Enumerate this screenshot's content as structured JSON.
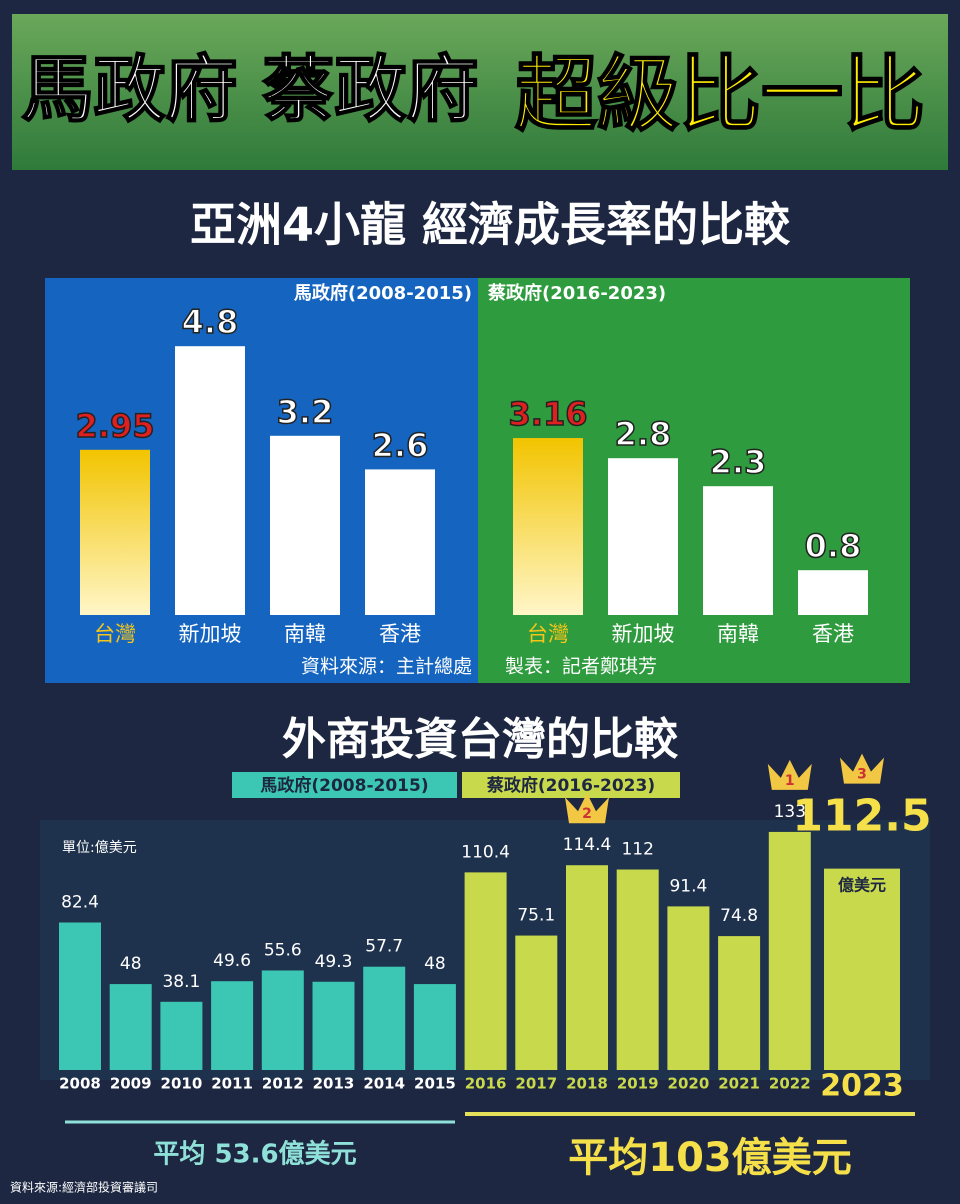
{
  "header": {
    "title_white": "馬政府 蔡政府",
    "title_yellow": "超級比一比"
  },
  "chart_data": [
    {
      "type": "panel-bar",
      "title": "亞洲4小龍 經濟成長率的比較",
      "categories": [
        "台灣",
        "新加坡",
        "南韓",
        "香港"
      ],
      "series": [
        {
          "name": "馬政府(2008-2015)",
          "color": "#1565c0",
          "colors": [
            "#f5c518",
            "#ffffff",
            "#ffffff",
            "#ffffff"
          ],
          "values": [
            2.95,
            4.8,
            3.2,
            2.6
          ]
        },
        {
          "name": "蔡政府(2016-2023)",
          "color": "#2e9b3e",
          "colors": [
            "#f5c518",
            "#ffffff",
            "#ffffff",
            "#ffffff"
          ],
          "values": [
            3.16,
            2.8,
            2.3,
            0.8
          ]
        }
      ],
      "notes": [
        "資料來源：主計總處",
        "製表：記者鄭琪芳"
      ]
    },
    {
      "type": "bar",
      "title": "外商投資台灣的比較",
      "unit": "單位:億美元",
      "categories": [
        "2008",
        "2009",
        "2010",
        "2011",
        "2012",
        "2013",
        "2014",
        "2015",
        "2016",
        "2017",
        "2018",
        "2019",
        "2020",
        "2021",
        "2022",
        "2023"
      ],
      "series": [
        {
          "name": "馬政府(2008-2015)",
          "color": "#3cc7b4",
          "values": [
            82.4,
            48,
            38.1,
            49.6,
            55.6,
            49.3,
            57.7,
            48,
            null,
            null,
            null,
            null,
            null,
            null,
            null,
            null
          ]
        },
        {
          "name": "蔡政府(2016-2023)",
          "color": "#c9d94c",
          "values": [
            null,
            null,
            null,
            null,
            null,
            null,
            null,
            null,
            110.4,
            75.1,
            114.4,
            112,
            91.4,
            74.8,
            133,
            112.5
          ]
        }
      ],
      "value_unit": "億美元",
      "ranks": [
        {
          "category": "2022",
          "label": "1"
        },
        {
          "category": "2018",
          "label": "2"
        },
        {
          "category": "2023",
          "label": "3"
        }
      ],
      "annotations": [
        "平均 53.6億美元",
        "平均103億美元"
      ],
      "source": "資料來源:經濟部投資審議司"
    }
  ]
}
